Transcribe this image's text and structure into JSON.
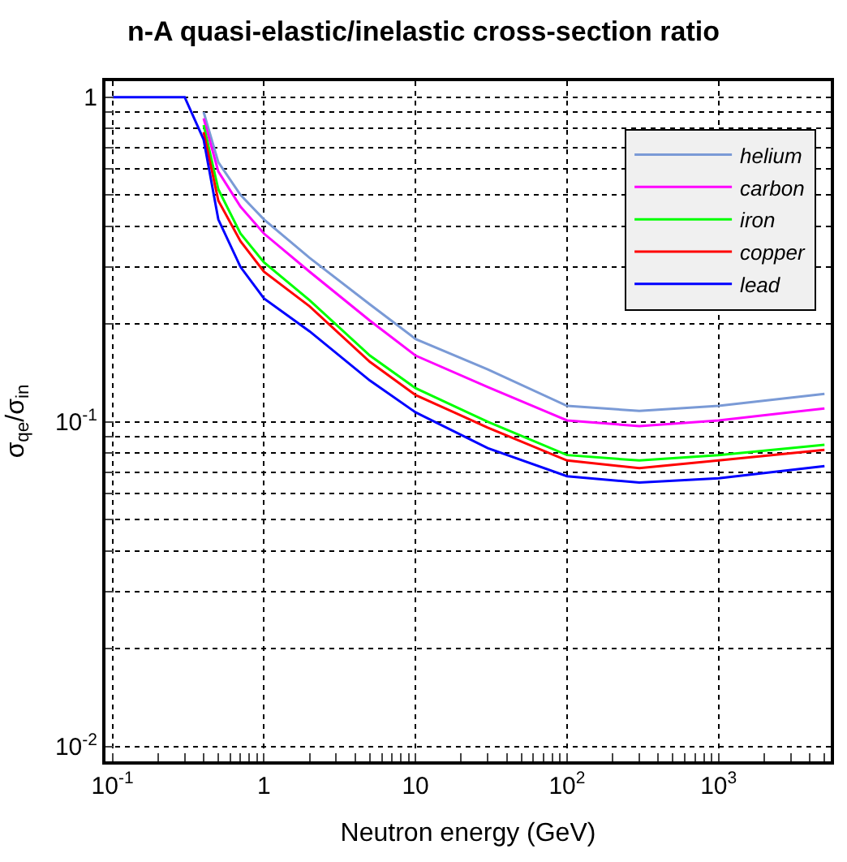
{
  "chart_data": {
    "type": "line",
    "title": "n-A quasi-elastic/inelastic cross-section ratio",
    "xlabel": "Neutron energy (GeV)",
    "ylabel": "σ$_{qe}$/σ$_{in}$",
    "x": [
      0.1,
      0.3,
      0.4,
      0.5,
      0.7,
      1,
      2,
      5,
      10,
      30,
      100,
      300,
      1000,
      5000
    ],
    "series": [
      {
        "name": "helium",
        "color": "#7a9ad6",
        "values": [
          null,
          null,
          0.9,
          0.63,
          0.5,
          0.42,
          0.32,
          0.23,
          0.18,
          0.145,
          0.112,
          0.108,
          0.112,
          0.122
        ]
      },
      {
        "name": "carbon",
        "color": "#ff00ff",
        "values": [
          null,
          null,
          0.86,
          0.59,
          0.46,
          0.38,
          0.29,
          0.205,
          0.16,
          0.128,
          0.101,
          0.097,
          0.101,
          0.11
        ]
      },
      {
        "name": "iron",
        "color": "#00ff00",
        "values": [
          null,
          null,
          0.82,
          0.52,
          0.38,
          0.31,
          0.237,
          0.16,
          0.127,
          0.1,
          0.079,
          0.076,
          0.079,
          0.085
        ]
      },
      {
        "name": "copper",
        "color": "#ff0000",
        "values": [
          null,
          null,
          0.78,
          0.48,
          0.36,
          0.29,
          0.227,
          0.153,
          0.121,
          0.096,
          0.076,
          0.072,
          0.076,
          0.082
        ]
      },
      {
        "name": "lead",
        "color": "#0000ff",
        "values": [
          1,
          1,
          0.74,
          0.42,
          0.3,
          0.24,
          0.19,
          0.134,
          0.107,
          0.083,
          0.068,
          0.065,
          0.067,
          0.073
        ]
      }
    ],
    "log": "xy",
    "xlim": [
      0.09,
      5500
    ],
    "ylim": [
      0.009,
      1.12
    ],
    "xticks": [
      {
        "value": 0.1,
        "label": "10$^{-1}$"
      },
      1,
      10,
      {
        "value": 100,
        "label": "10$^{2}$"
      },
      {
        "value": 1000,
        "label": "10$^{3}$"
      }
    ],
    "yticks": [
      {
        "value": 0.01,
        "label": "10$^{-2}$"
      },
      {
        "value": 0.1,
        "label": "10$^{-1}$"
      },
      1
    ],
    "grid": true,
    "legend": "top right",
    "marker": "none",
    "line_style": "solid"
  }
}
